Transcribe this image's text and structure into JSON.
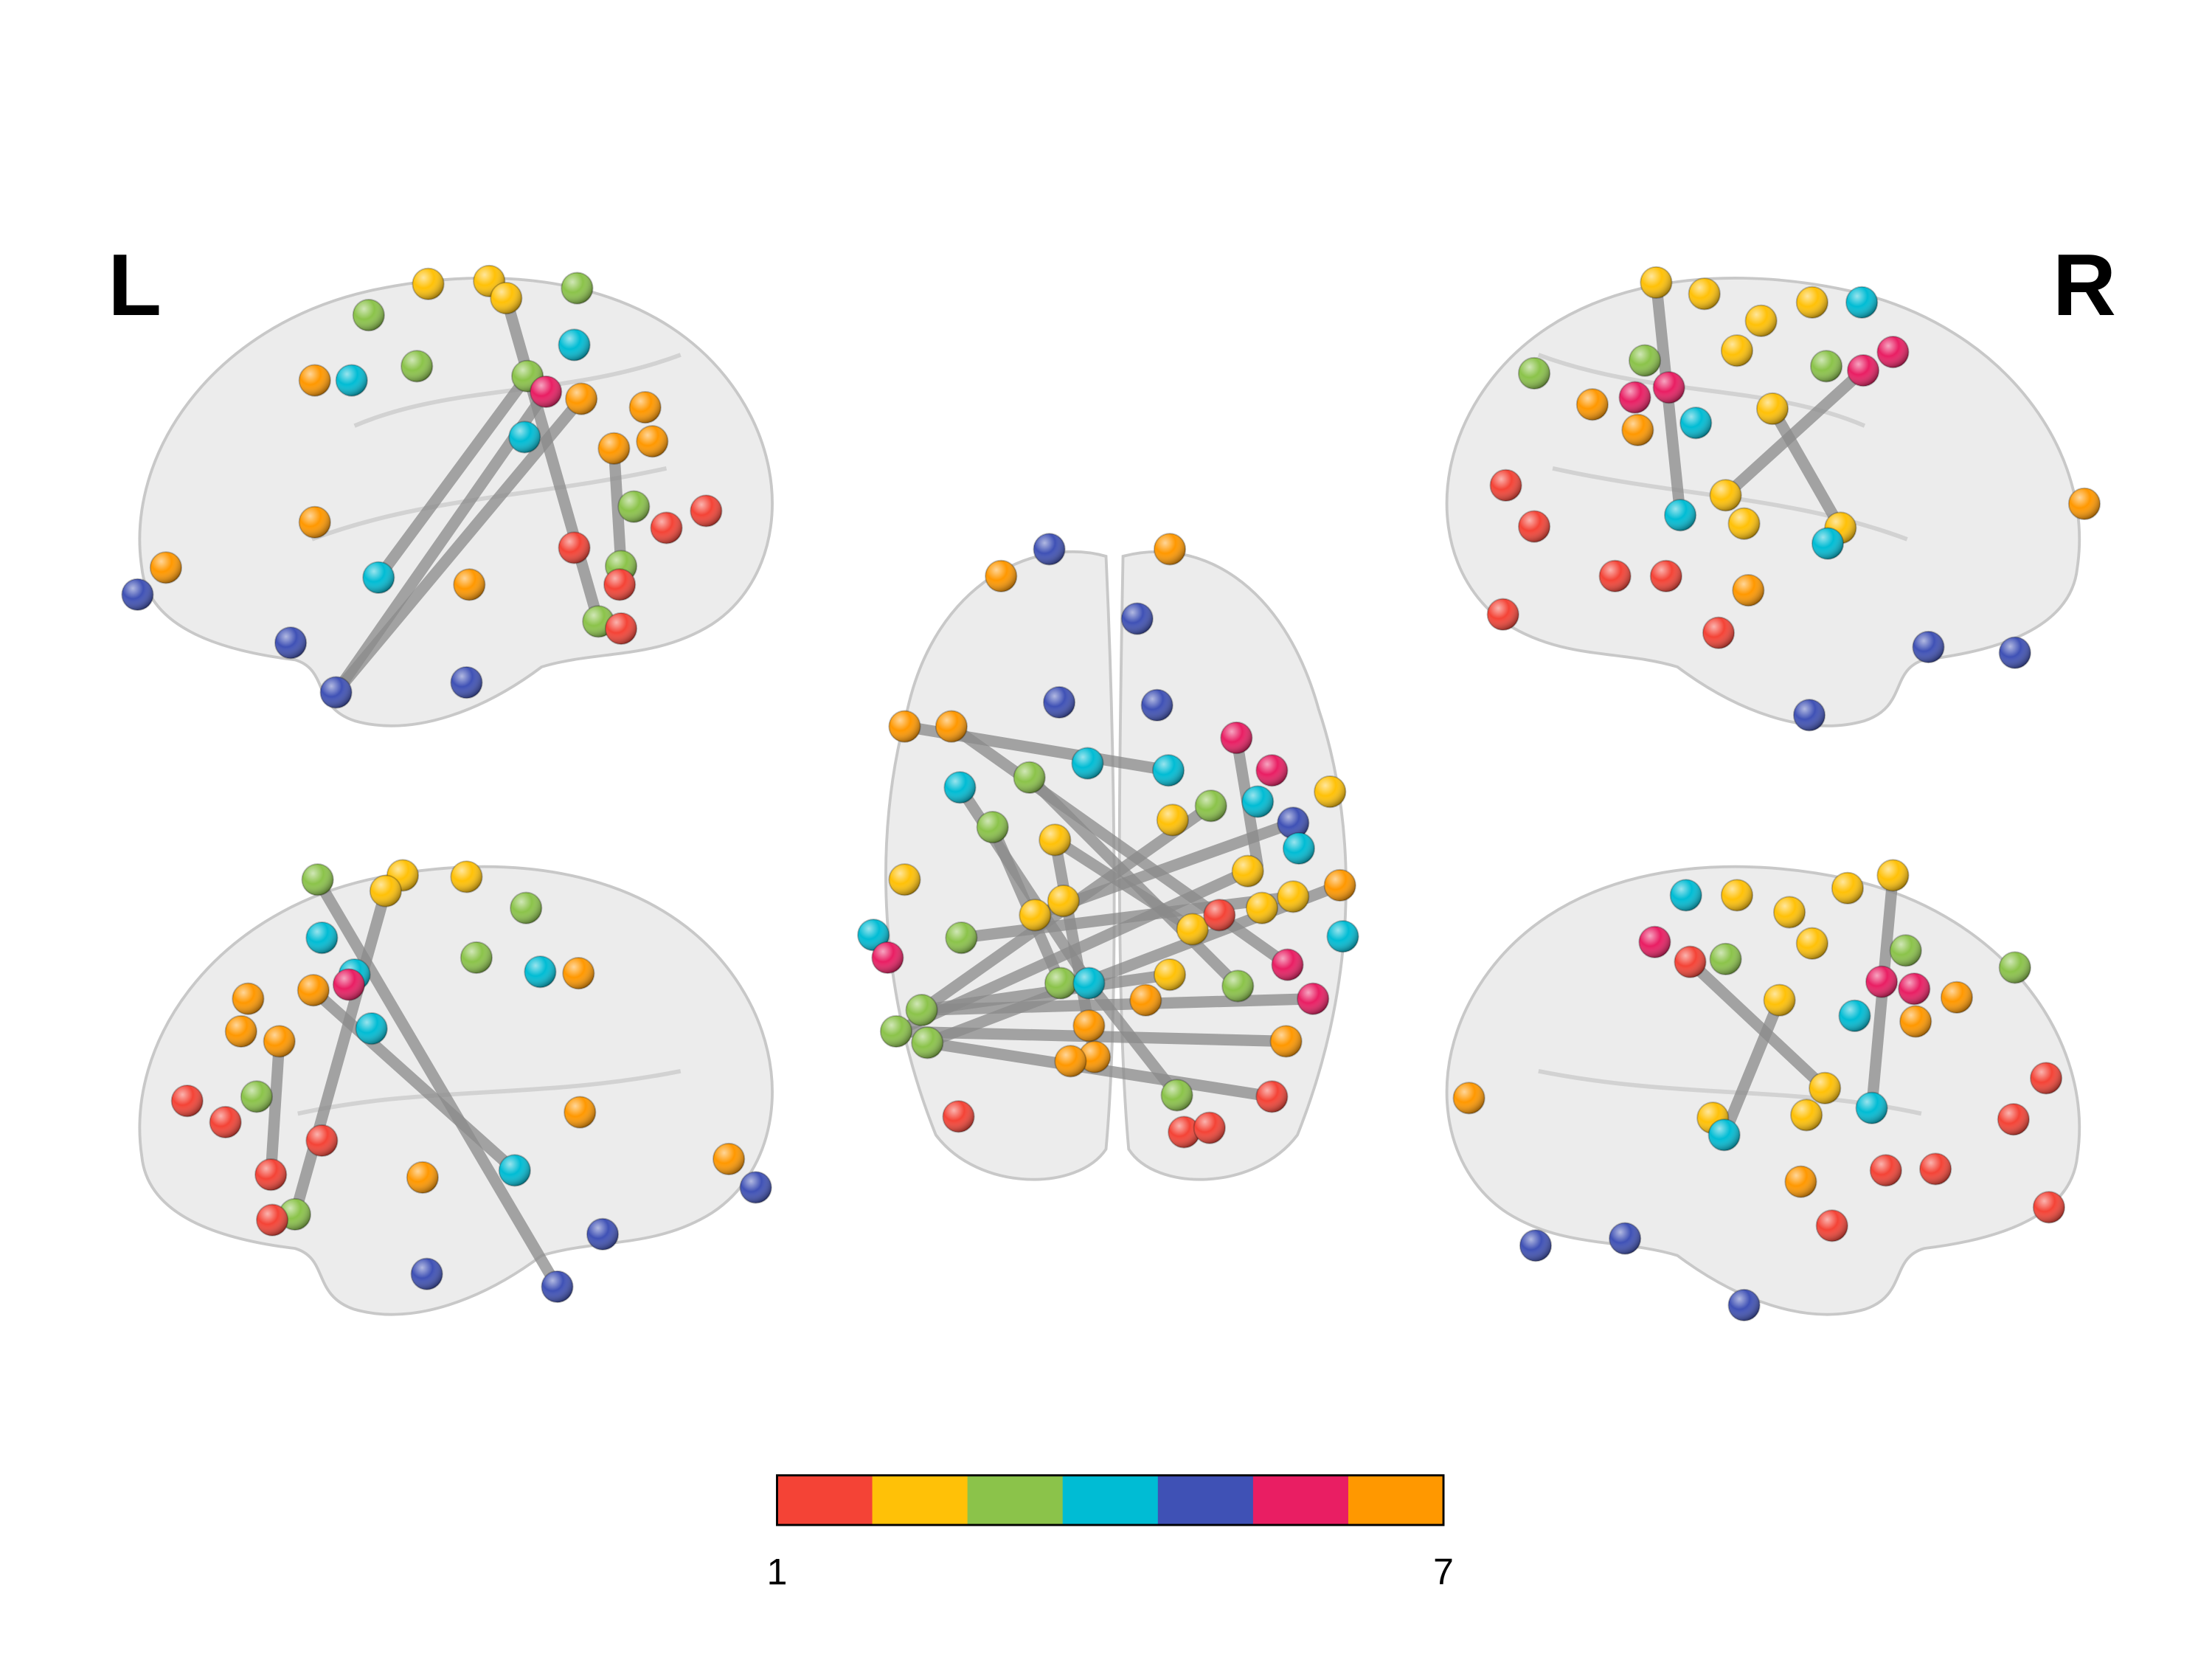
{
  "labels": {
    "left": "L",
    "right": "R"
  },
  "colorbar": {
    "min": 1,
    "max": 7,
    "colors": [
      "#f44336",
      "#ffc107",
      "#8bc34a",
      "#00bcd4",
      "#3f51b5",
      "#e91e63",
      "#ff9800"
    ]
  }
}
